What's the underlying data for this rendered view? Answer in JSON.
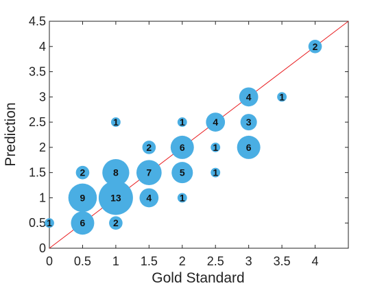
{
  "chart_data": {
    "type": "scatter",
    "title": "",
    "xlabel": "Gold Standard",
    "ylabel": "Prediction",
    "xlim": [
      0,
      4.5
    ],
    "ylim": [
      0,
      4.5
    ],
    "xticks": [
      "0",
      "0.5",
      "1",
      "1.5",
      "2",
      "2.5",
      "3",
      "3.5",
      "4"
    ],
    "yticks": [
      "0",
      "0.5",
      "1",
      "1.5",
      "2",
      "2.5",
      "3",
      "3.5",
      "4",
      "4.5"
    ],
    "grid": false,
    "reference_line": {
      "from": [
        0,
        0
      ],
      "to": [
        4.5,
        4.5
      ],
      "color": "#e8191c"
    },
    "bubble_color": "#4aaee3",
    "points": [
      {
        "x": 0,
        "y": 0.5,
        "count": "1"
      },
      {
        "x": 0.5,
        "y": 0.5,
        "count": "6"
      },
      {
        "x": 0.5,
        "y": 1,
        "count": "9"
      },
      {
        "x": 0.5,
        "y": 1.5,
        "count": "2"
      },
      {
        "x": 1,
        "y": 0.5,
        "count": "2"
      },
      {
        "x": 1,
        "y": 1,
        "count": "13"
      },
      {
        "x": 1,
        "y": 1.5,
        "count": "8"
      },
      {
        "x": 1,
        "y": 2.5,
        "count": "1"
      },
      {
        "x": 1.5,
        "y": 1,
        "count": "4"
      },
      {
        "x": 1.5,
        "y": 1.5,
        "count": "7"
      },
      {
        "x": 1.5,
        "y": 2,
        "count": "2"
      },
      {
        "x": 2,
        "y": 1,
        "count": "1"
      },
      {
        "x": 2,
        "y": 1.5,
        "count": "5"
      },
      {
        "x": 2,
        "y": 2,
        "count": "6"
      },
      {
        "x": 2,
        "y": 2.5,
        "count": "1"
      },
      {
        "x": 2.5,
        "y": 1.5,
        "count": "1"
      },
      {
        "x": 2.5,
        "y": 2,
        "count": "1"
      },
      {
        "x": 2.5,
        "y": 2.5,
        "count": "4"
      },
      {
        "x": 3,
        "y": 2,
        "count": "6"
      },
      {
        "x": 3,
        "y": 2.5,
        "count": "3"
      },
      {
        "x": 3,
        "y": 3,
        "count": "4"
      },
      {
        "x": 3.5,
        "y": 3,
        "count": "1"
      },
      {
        "x": 4,
        "y": 4,
        "count": "2"
      }
    ]
  }
}
